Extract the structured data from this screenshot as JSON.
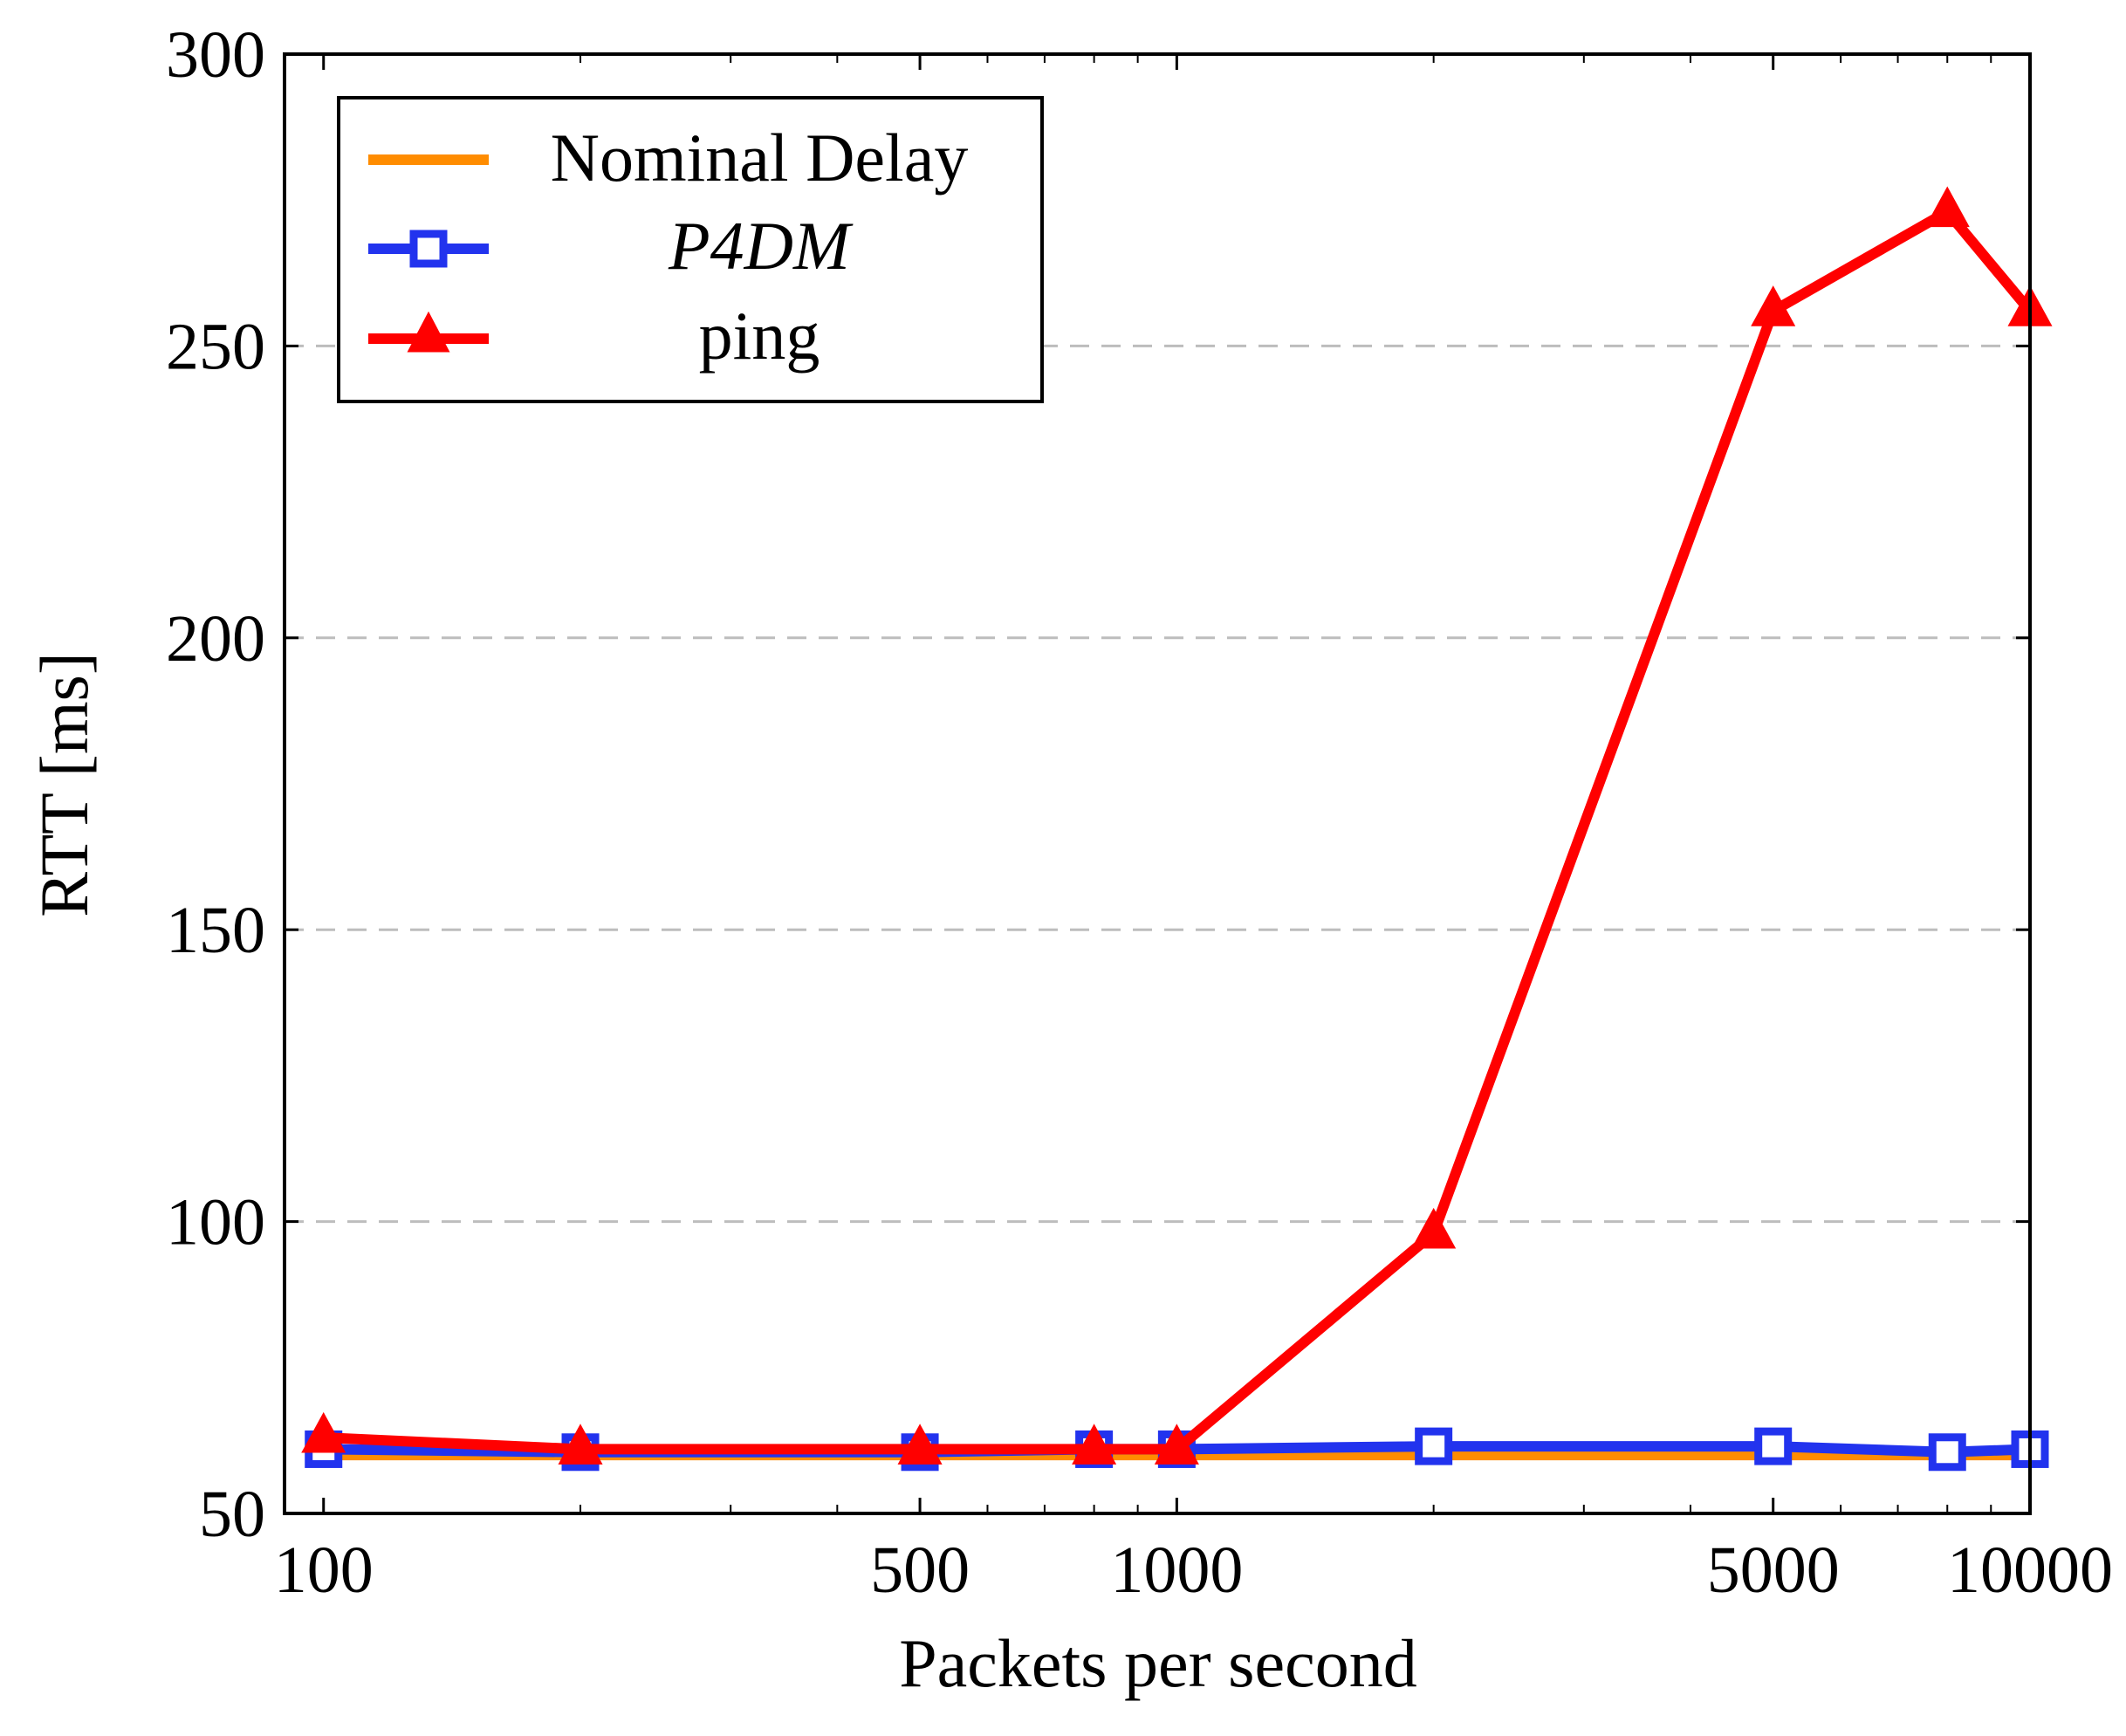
{
  "chart_data": {
    "type": "line",
    "title": "",
    "xlabel": "Packets per second",
    "ylabel": "RTT [ms]",
    "x_scale": "log",
    "xlim": [
      90,
      10000
    ],
    "ylim": [
      50,
      300
    ],
    "x_ticks": [
      100,
      500,
      1000,
      5000,
      10000
    ],
    "x_tick_labels": [
      "100",
      "500",
      "1000",
      "5000",
      "10000"
    ],
    "y_ticks": [
      50,
      100,
      150,
      200,
      250,
      300
    ],
    "y_tick_labels": [
      "50",
      "100",
      "150",
      "200",
      "250",
      "300"
    ],
    "grid": "horizontal dashed",
    "legend_position": "top-left",
    "series": [
      {
        "name": "Nominal Delay",
        "color": "#FF8C00",
        "marker": "none",
        "x": [
          100,
          200,
          500,
          800,
          1000,
          2000,
          5000,
          8000,
          10000
        ],
        "values": [
          60,
          60,
          60,
          60,
          60,
          60,
          60,
          60,
          60
        ]
      },
      {
        "name": "P4DM",
        "color": "#2233EE",
        "marker": "square",
        "x": [
          100,
          200,
          500,
          800,
          1000,
          2000,
          5000,
          8000,
          10000
        ],
        "values": [
          61,
          60.5,
          60.5,
          61,
          61,
          61.5,
          61.5,
          60.5,
          61
        ]
      },
      {
        "name": "ping",
        "color": "#FF0000",
        "marker": "triangle",
        "x": [
          100,
          200,
          500,
          800,
          1000,
          2000,
          5000,
          8000,
          10000
        ],
        "values": [
          63,
          61,
          61,
          61,
          61,
          98,
          256,
          273,
          256
        ]
      }
    ]
  }
}
